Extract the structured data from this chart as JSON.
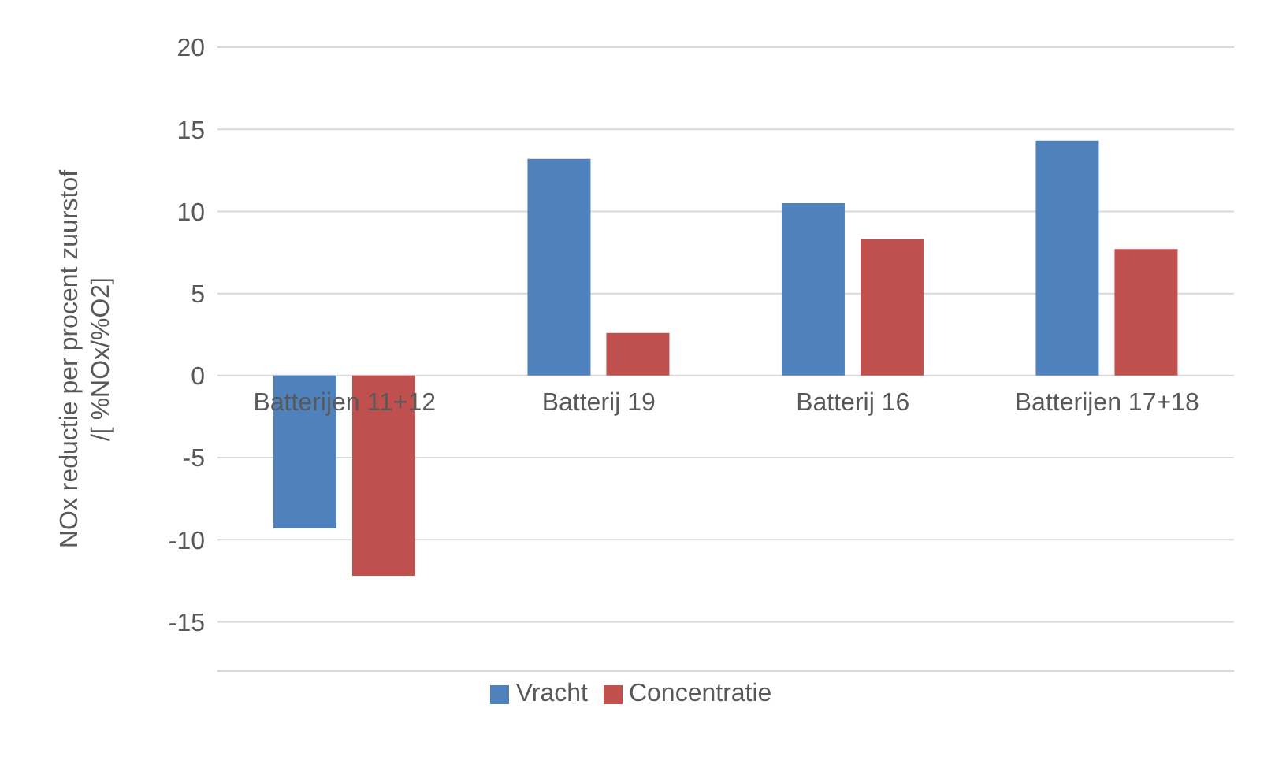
{
  "chart_data": {
    "type": "bar",
    "ylabel": "NOx reductie per procent zuurstof\n/[ %NOx/%O2]",
    "categories": [
      "Batterijen 11+12",
      "Batterij 19",
      "Batterij 16",
      "Batterijen 17+18"
    ],
    "series": [
      {
        "name": "Vracht",
        "color": "#4f81bd",
        "values": [
          -9.3,
          13.2,
          10.5,
          14.3
        ]
      },
      {
        "name": "Concentratie",
        "color": "#c0504d",
        "values": [
          -12.2,
          2.6,
          8.3,
          7.7
        ]
      }
    ],
    "ylim": [
      -18,
      20
    ],
    "yticks": [
      -15,
      -10,
      -5,
      0,
      5,
      10,
      15,
      20
    ],
    "grid": "y",
    "legend": "bottom"
  }
}
